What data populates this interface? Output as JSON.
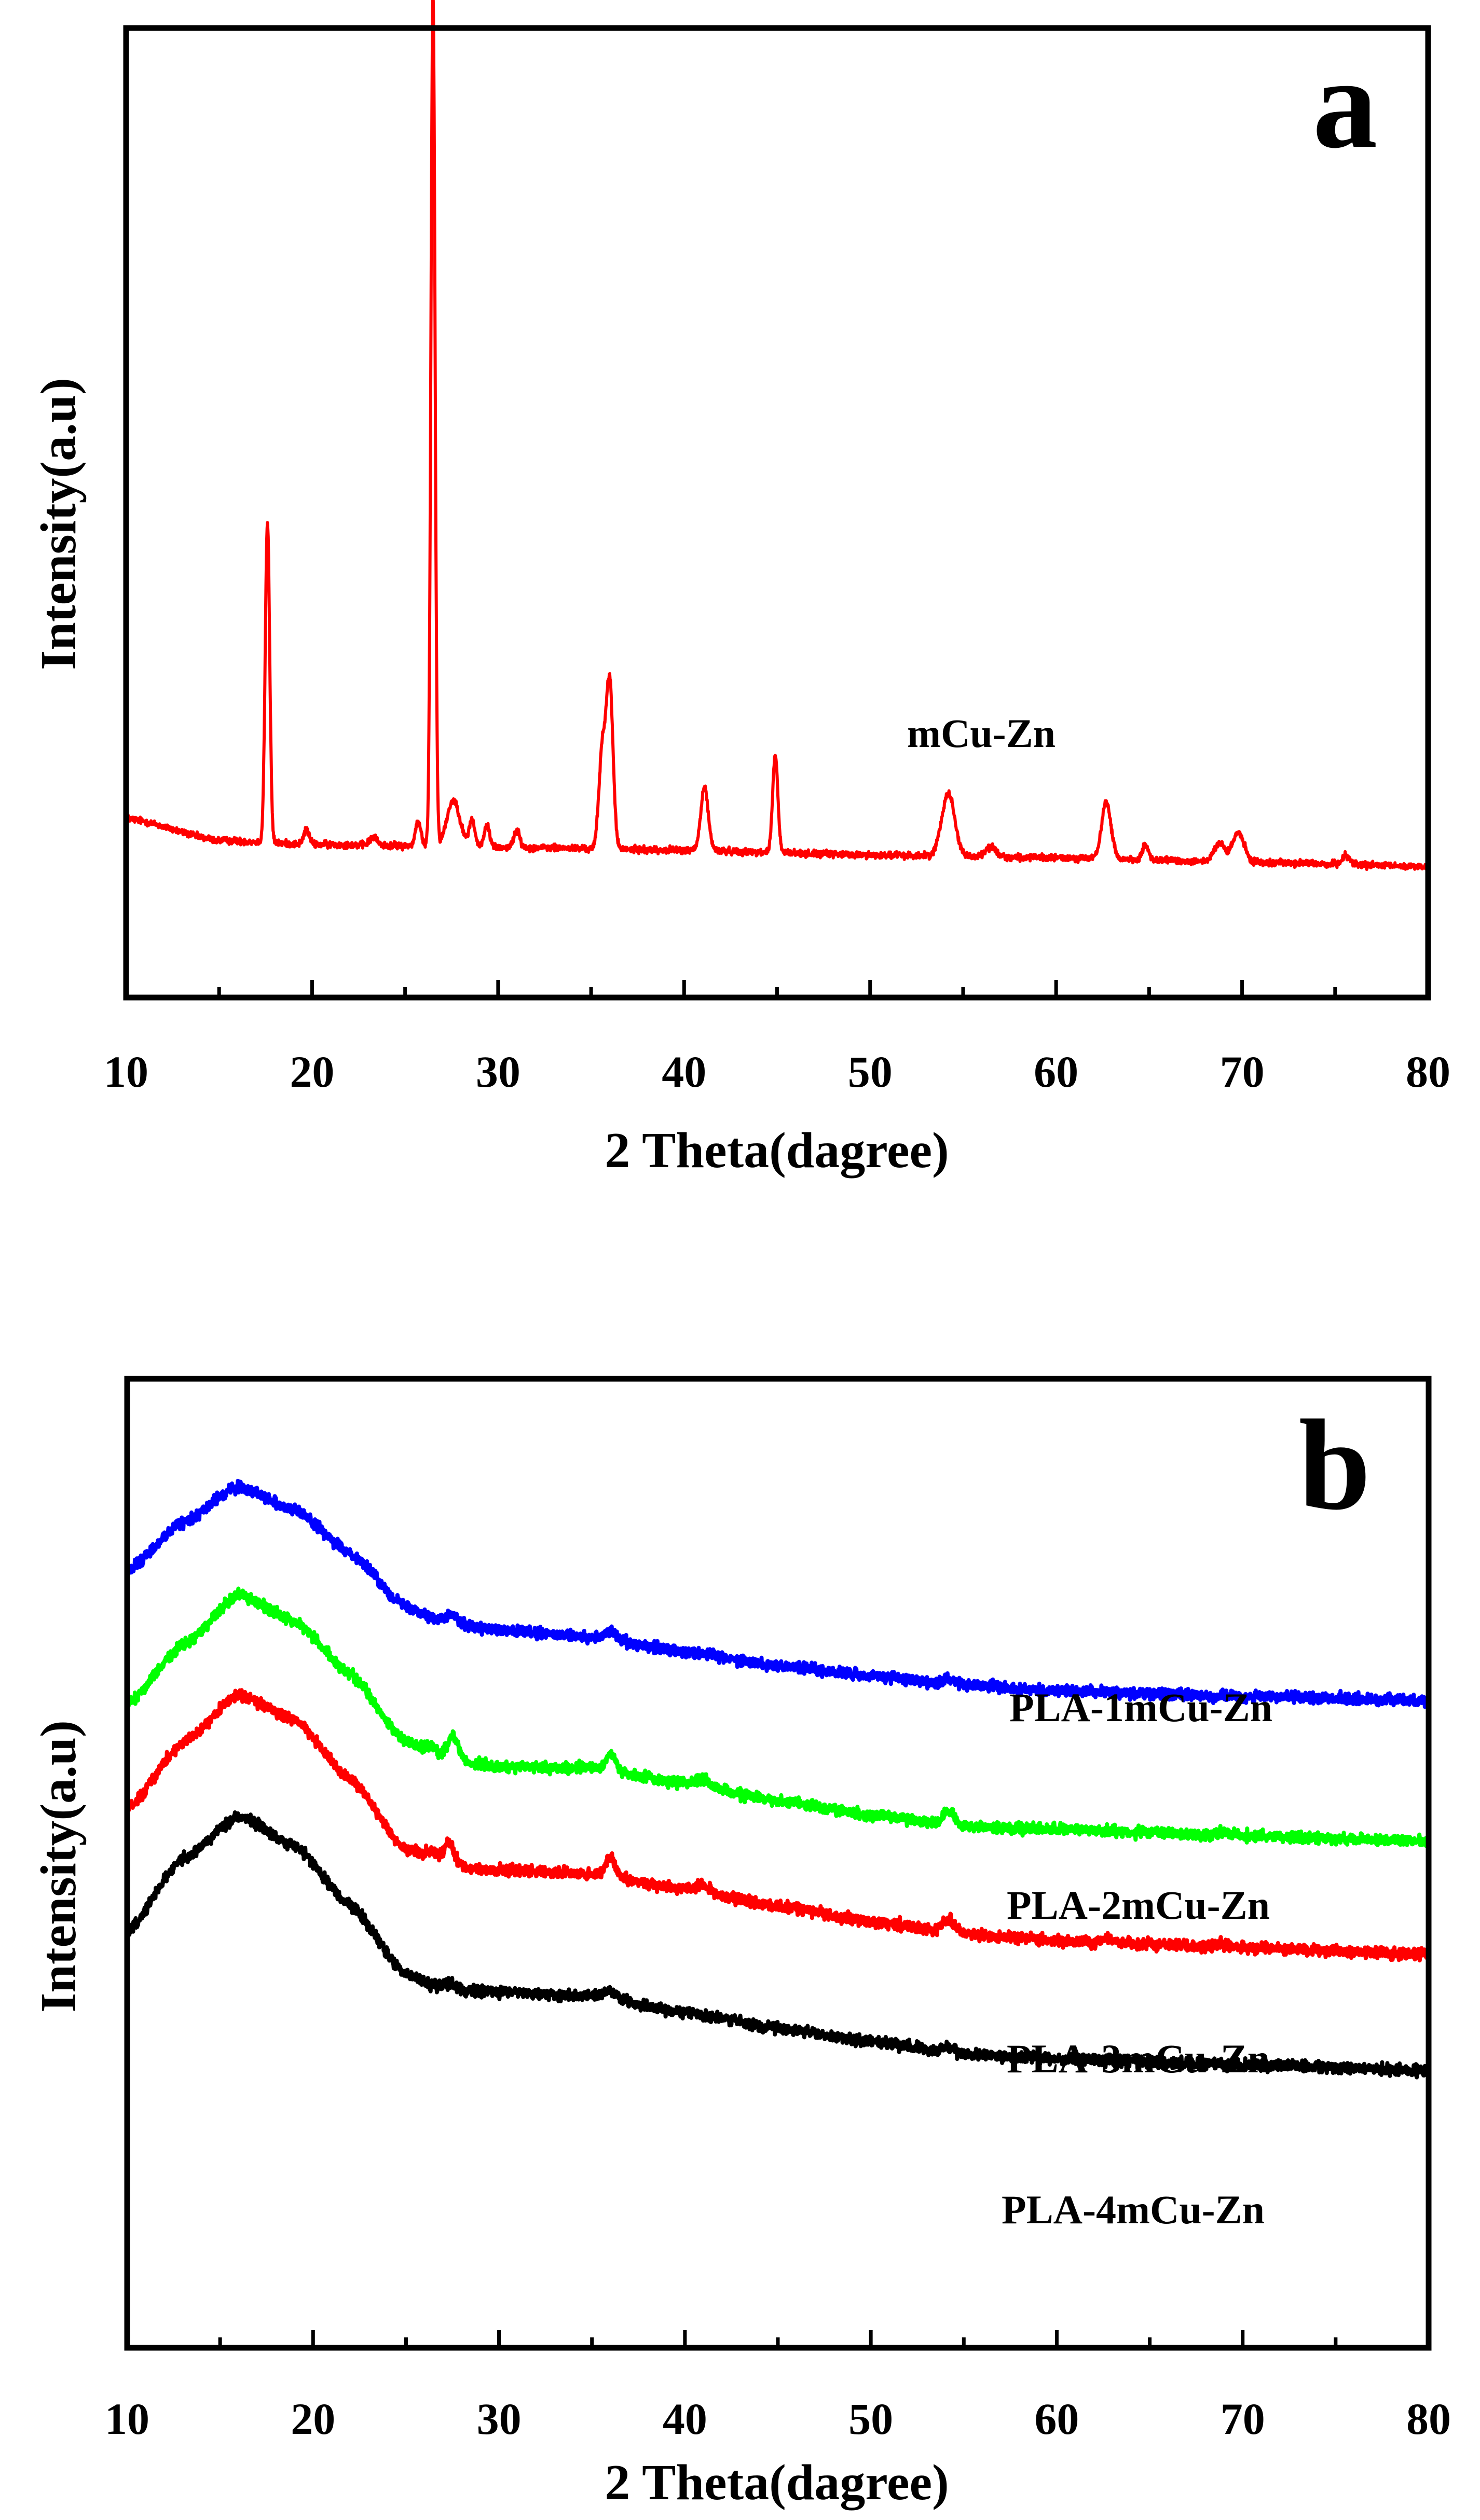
{
  "chart_data": [
    {
      "panel": "a",
      "type": "line",
      "xlabel": "2 Theta(dagree)",
      "ylabel": "Intensity(a.u)",
      "xlim": [
        10,
        80
      ],
      "ylim": [
        0,
        100
      ],
      "xticks": [
        10,
        20,
        30,
        40,
        50,
        60,
        70,
        80
      ],
      "ytick_labels": false,
      "grid": false,
      "series": [
        {
          "name": "mCu-Zn",
          "color": "#ff0000",
          "baseline": [
            [
              10,
              18.5
            ],
            [
              15,
              16.2
            ],
            [
              20,
              15.8
            ],
            [
              30,
              15.5
            ],
            [
              40,
              15.2
            ],
            [
              50,
              14.7
            ],
            [
              60,
              14.4
            ],
            [
              70,
              14.0
            ],
            [
              80,
              13.5
            ]
          ],
          "peaks": [
            {
              "x": 17.6,
              "h": 33,
              "w": 0.12
            },
            {
              "x": 19.7,
              "h": 1.5,
              "w": 0.15
            },
            {
              "x": 23.3,
              "h": 0.8,
              "w": 0.2
            },
            {
              "x": 25.7,
              "h": 2.5,
              "w": 0.15
            },
            {
              "x": 26.5,
              "h": 88,
              "w": 0.11
            },
            {
              "x": 27.6,
              "h": 4.8,
              "w": 0.35
            },
            {
              "x": 28.6,
              "h": 2.8,
              "w": 0.15
            },
            {
              "x": 29.4,
              "h": 2.2,
              "w": 0.15
            },
            {
              "x": 31.0,
              "h": 1.8,
              "w": 0.15
            },
            {
              "x": 35.6,
              "h": 10,
              "w": 0.18
            },
            {
              "x": 36.0,
              "h": 17,
              "w": 0.18
            },
            {
              "x": 41.1,
              "h": 6.5,
              "w": 0.2
            },
            {
              "x": 44.9,
              "h": 10,
              "w": 0.14
            },
            {
              "x": 54.2,
              "h": 6.5,
              "w": 0.35
            },
            {
              "x": 56.5,
              "h": 1.0,
              "w": 0.3
            },
            {
              "x": 62.7,
              "h": 5.8,
              "w": 0.25
            },
            {
              "x": 64.8,
              "h": 1.5,
              "w": 0.15
            },
            {
              "x": 68.8,
              "h": 1.8,
              "w": 0.3
            },
            {
              "x": 69.8,
              "h": 3.0,
              "w": 0.3
            },
            {
              "x": 75.6,
              "h": 1.0,
              "w": 0.2
            }
          ]
        }
      ],
      "annotations": [
        {
          "text": "a"
        },
        {
          "text": "mCu-Zn"
        }
      ]
    },
    {
      "panel": "b",
      "type": "line",
      "xlabel": "2 Theta(dagree)",
      "ylabel": "Intensity(a.u)",
      "xlim": [
        10,
        80
      ],
      "ylim": [
        0,
        100
      ],
      "xticks": [
        10,
        20,
        30,
        40,
        50,
        60,
        70,
        80
      ],
      "ytick_labels": false,
      "grid": false,
      "series": [
        {
          "name": "PLA-1mCu-Zn",
          "color": "#0000ff",
          "curve": [
            [
              10,
              80.2
            ],
            [
              13,
              85.2
            ],
            [
              16,
              88.9
            ],
            [
              19,
              86.5
            ],
            [
              22,
              82.0
            ],
            [
              25,
              76.5
            ],
            [
              27,
              75.0
            ],
            [
              30,
              74.0
            ],
            [
              35,
              73.3
            ],
            [
              40,
              71.9
            ],
            [
              45,
              70.4
            ],
            [
              50,
              69.3
            ],
            [
              55,
              68.4
            ],
            [
              60,
              67.8
            ],
            [
              70,
              67.2
            ],
            [
              80,
              66.8
            ]
          ],
          "peaks": [
            {
              "x": 27.5,
              "h": 0.8,
              "w": 0.3
            },
            {
              "x": 36.0,
              "h": 0.8,
              "w": 0.3
            },
            {
              "x": 54.2,
              "h": 0.5,
              "w": 0.3
            }
          ]
        },
        {
          "name": "PLA-2mCu-Zn",
          "color": "#00ff00",
          "curve": [
            [
              10,
              66.5
            ],
            [
              13,
              72.5
            ],
            [
              16,
              77.7
            ],
            [
              19,
              75.0
            ],
            [
              22,
              69.5
            ],
            [
              25,
              62.5
            ],
            [
              27,
              60.7
            ],
            [
              30,
              60.0
            ],
            [
              35,
              59.8
            ],
            [
              40,
              58.3
            ],
            [
              45,
              56.5
            ],
            [
              50,
              55.0
            ],
            [
              55,
              53.8
            ],
            [
              60,
              53.5
            ],
            [
              70,
              52.8
            ],
            [
              80,
              52.3
            ]
          ],
          "peaks": [
            {
              "x": 26.4,
              "h": 1.0,
              "w": 0.3
            },
            {
              "x": 27.5,
              "h": 2.6,
              "w": 0.3
            },
            {
              "x": 36.0,
              "h": 1.8,
              "w": 0.25
            },
            {
              "x": 41.0,
              "h": 0.8,
              "w": 0.3
            },
            {
              "x": 54.2,
              "h": 1.5,
              "w": 0.3
            },
            {
              "x": 69.0,
              "h": 0.4,
              "w": 0.4
            }
          ]
        },
        {
          "name": "PLA-3mCu-Zn",
          "color": "#ff0000",
          "curve": [
            [
              10,
              55.6
            ],
            [
              13,
              62.5
            ],
            [
              16,
              67.4
            ],
            [
              19,
              64.8
            ],
            [
              22,
              58.7
            ],
            [
              25,
              51.5
            ],
            [
              27,
              49.8
            ],
            [
              30,
              49.3
            ],
            [
              35,
              48.9
            ],
            [
              40,
              47.3
            ],
            [
              45,
              45.6
            ],
            [
              50,
              44.0
            ],
            [
              55,
              42.7
            ],
            [
              60,
              42.0
            ],
            [
              70,
              41.3
            ],
            [
              80,
              40.6
            ]
          ],
          "peaks": [
            {
              "x": 26.4,
              "h": 1.0,
              "w": 0.3
            },
            {
              "x": 27.3,
              "h": 2.4,
              "w": 0.3
            },
            {
              "x": 36.0,
              "h": 2.0,
              "w": 0.25
            },
            {
              "x": 41.0,
              "h": 0.8,
              "w": 0.3
            },
            {
              "x": 54.2,
              "h": 1.4,
              "w": 0.3
            },
            {
              "x": 62.7,
              "h": 0.4,
              "w": 0.3
            },
            {
              "x": 68.8,
              "h": 0.4,
              "w": 0.3
            }
          ]
        },
        {
          "name": "PLA-4mCu-Zn",
          "color": "#000000",
          "curve": [
            [
              10,
              43.0
            ],
            [
              13,
              50.5
            ],
            [
              16,
              54.8
            ],
            [
              19,
              51.8
            ],
            [
              22,
              45.7
            ],
            [
              25,
              38.5
            ],
            [
              27,
              37.0
            ],
            [
              30,
              36.7
            ],
            [
              35,
              36.3
            ],
            [
              40,
              34.6
            ],
            [
              45,
              33.0
            ],
            [
              50,
              31.6
            ],
            [
              55,
              30.3
            ],
            [
              60,
              29.8
            ],
            [
              70,
              29.2
            ],
            [
              80,
              28.6
            ]
          ],
          "peaks": [
            {
              "x": 27.3,
              "h": 0.7,
              "w": 0.3
            },
            {
              "x": 36.0,
              "h": 0.8,
              "w": 0.3
            },
            {
              "x": 54.2,
              "h": 0.6,
              "w": 0.3
            }
          ]
        }
      ],
      "annotations": [
        {
          "text": "b"
        },
        {
          "text": "PLA-1mCu-Zn"
        },
        {
          "text": "PLA-2mCu-Zn"
        },
        {
          "text": "PLA-3mCu-Zn"
        },
        {
          "text": "PLA-4mCu-Zn"
        }
      ]
    }
  ]
}
